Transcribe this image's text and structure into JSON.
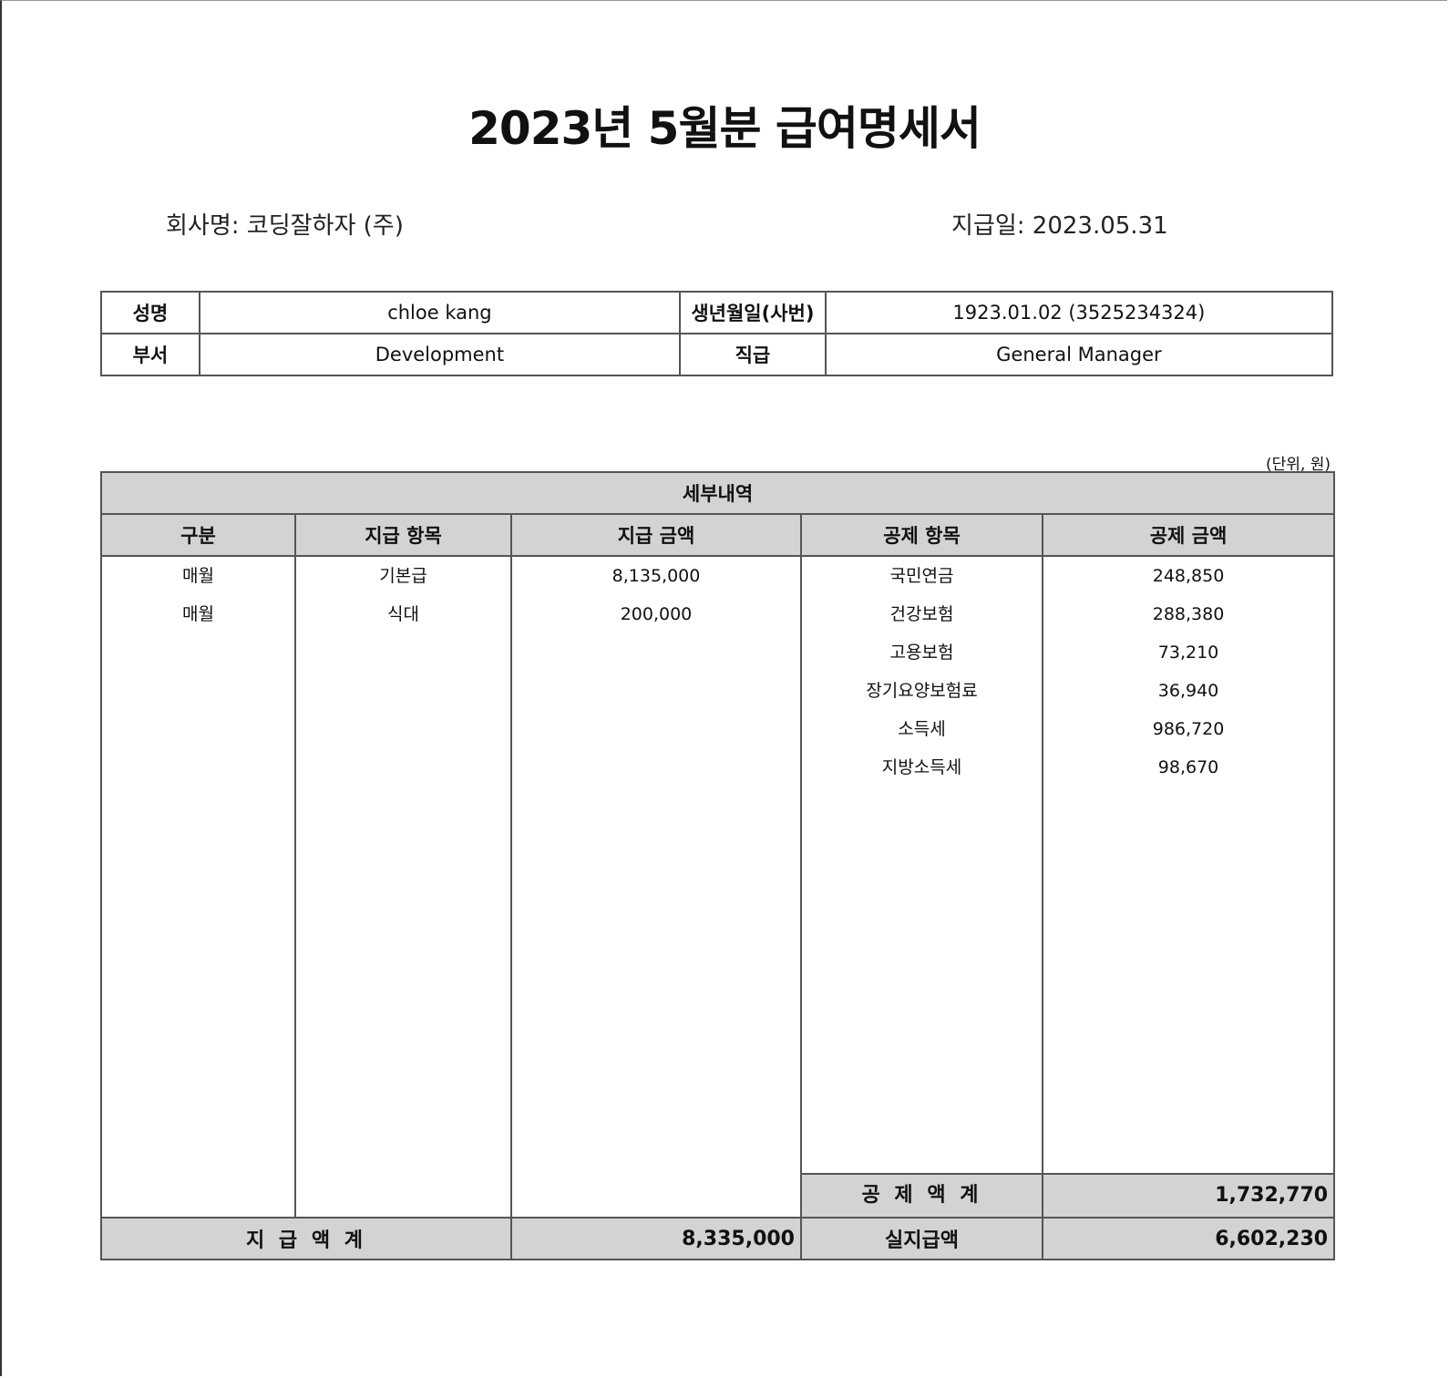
{
  "title": "2023년 5월분 급여명세서",
  "company_label": "회사명: 코딩잘하자 (주)",
  "paydate_label": "지급일: 2023.05.31",
  "employee": {
    "name_label": "성명",
    "name": "chloe kang",
    "birth_label": "생년월일(사번)",
    "birth": "1923.01.02 (3525234324)",
    "dept_label": "부서",
    "dept": "Development",
    "rank_label": "직급",
    "rank": "General Manager"
  },
  "unit": "(단위, 원)",
  "detail": {
    "heading": "세부내역",
    "headers": [
      "구분",
      "지급 항목",
      "지급 금액",
      "공제 항목",
      "공제 금액"
    ],
    "payments": [
      {
        "type": "매월",
        "item": "기본급",
        "amount": "8,135,000"
      },
      {
        "type": "매월",
        "item": "식대",
        "amount": "200,000"
      }
    ],
    "deductions": [
      {
        "item": "국민연금",
        "amount": "248,850"
      },
      {
        "item": "건강보험",
        "amount": "288,380"
      },
      {
        "item": "고용보험",
        "amount": "73,210"
      },
      {
        "item": "장기요양보험료",
        "amount": "36,940"
      },
      {
        "item": "소득세",
        "amount": "986,720"
      },
      {
        "item": "지방소득세",
        "amount": "98,670"
      }
    ],
    "deduction_total_label": "공 제 액 계",
    "deduction_total": "1,732,770",
    "payment_total_label": "지 급 액 계",
    "payment_total": "8,335,000",
    "net_label": "실지급액",
    "net": "6,602,230"
  }
}
